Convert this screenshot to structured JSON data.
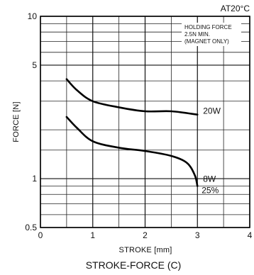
{
  "chart_data": {
    "type": "line",
    "title": "STROKE-FORCE (C)",
    "condition": "AT20°C",
    "xlabel": "STROKE [mm]",
    "ylabel": "FORCE [N]",
    "xlim": [
      0,
      4
    ],
    "ylim": [
      0.5,
      10
    ],
    "yscale": "log",
    "grid": true,
    "x_ticks": [
      {
        "value": 0,
        "label": "0"
      },
      {
        "value": 1,
        "label": "1"
      },
      {
        "value": 2,
        "label": "2"
      },
      {
        "value": 3,
        "label": "3"
      },
      {
        "value": 4,
        "label": "4"
      }
    ],
    "y_ticks": [
      {
        "value": 0.5,
        "label": "0.5"
      },
      {
        "value": 1,
        "label": "1"
      },
      {
        "value": 5,
        "label": "5"
      },
      {
        "value": 10,
        "label": "10"
      }
    ],
    "y_minor_gridlines": [
      0.6,
      0.7,
      0.8,
      0.9,
      1.5,
      2,
      3,
      4,
      6,
      7,
      8,
      9
    ],
    "x_minor_gridlines": [
      0.5,
      1.5,
      2.5,
      3.5
    ],
    "note_lines": [
      "HOLDING FORCE",
      "2.5N MIN.",
      "(MAGNET ONLY)"
    ],
    "series": [
      {
        "name": "20W",
        "label_position": "right",
        "points": [
          [
            0.5,
            4.1
          ],
          [
            0.7,
            3.5
          ],
          [
            1.0,
            3.0
          ],
          [
            1.5,
            2.75
          ],
          [
            2.0,
            2.6
          ],
          [
            2.5,
            2.6
          ],
          [
            3.0,
            2.48
          ]
        ]
      },
      {
        "name": "8W",
        "sublabel": "25%",
        "label_position": "right",
        "points": [
          [
            0.5,
            2.4
          ],
          [
            0.7,
            2.05
          ],
          [
            1.0,
            1.7
          ],
          [
            1.5,
            1.55
          ],
          [
            2.0,
            1.48
          ],
          [
            2.5,
            1.38
          ],
          [
            2.8,
            1.25
          ],
          [
            2.95,
            1.05
          ],
          [
            3.0,
            0.9
          ]
        ]
      }
    ]
  }
}
